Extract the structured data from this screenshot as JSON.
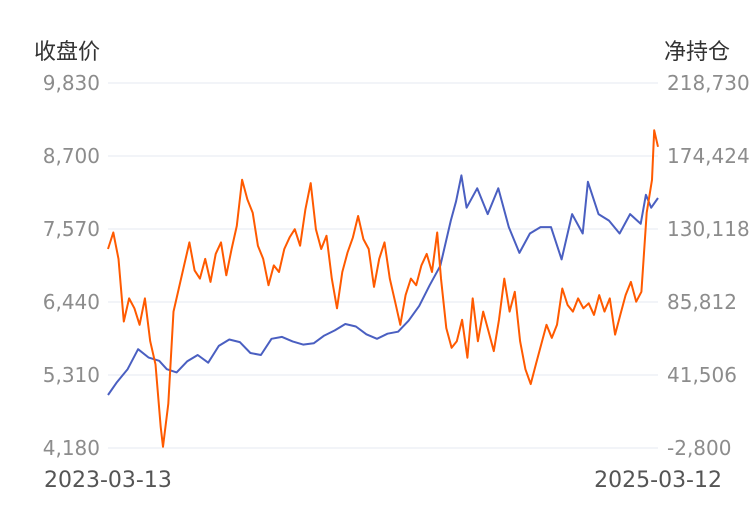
{
  "chart_data": {
    "type": "line",
    "left_axis_title": "收盘价",
    "right_axis_title": "净持仓",
    "left_ticks": [
      "9,830",
      "8,700",
      "7,570",
      "6,440",
      "5,310",
      "4,180"
    ],
    "right_ticks": [
      "218,730",
      "174,424",
      "130,118",
      "85,812",
      "41,506",
      "-2,800"
    ],
    "left_ylim": [
      4180,
      9830
    ],
    "right_ylim": [
      -2800,
      218730
    ],
    "x_start_label": "2023-03-13",
    "x_end_label": "2025-03-12",
    "x_range": [
      "2023-03-13",
      "2025-03-12"
    ],
    "grid": true,
    "series": [
      {
        "axis": "left",
        "color": "#4a5fc1",
        "points": [
          [
            "2023-03-13",
            5000
          ],
          [
            "2023-03-25",
            5200
          ],
          [
            "2023-04-08",
            5400
          ],
          [
            "2023-04-22",
            5710
          ],
          [
            "2023-05-06",
            5580
          ],
          [
            "2023-05-20",
            5530
          ],
          [
            "2023-05-30",
            5400
          ],
          [
            "2023-06-12",
            5350
          ],
          [
            "2023-06-26",
            5520
          ],
          [
            "2023-07-10",
            5620
          ],
          [
            "2023-07-24",
            5500
          ],
          [
            "2023-08-07",
            5760
          ],
          [
            "2023-08-21",
            5860
          ],
          [
            "2023-09-04",
            5820
          ],
          [
            "2023-09-18",
            5650
          ],
          [
            "2023-10-02",
            5620
          ],
          [
            "2023-10-16",
            5870
          ],
          [
            "2023-10-30",
            5900
          ],
          [
            "2023-11-13",
            5830
          ],
          [
            "2023-11-27",
            5780
          ],
          [
            "2023-12-11",
            5800
          ],
          [
            "2023-12-25",
            5920
          ],
          [
            "2024-01-08",
            6000
          ],
          [
            "2024-01-22",
            6100
          ],
          [
            "2024-02-05",
            6060
          ],
          [
            "2024-02-19",
            5940
          ],
          [
            "2024-03-04",
            5870
          ],
          [
            "2024-03-18",
            5950
          ],
          [
            "2024-04-01",
            5980
          ],
          [
            "2024-04-15",
            6150
          ],
          [
            "2024-04-29",
            6380
          ],
          [
            "2024-05-13",
            6700
          ],
          [
            "2024-05-27",
            7000
          ],
          [
            "2024-06-10",
            7700
          ],
          [
            "2024-06-17",
            8000
          ],
          [
            "2024-06-24",
            8400
          ],
          [
            "2024-07-01",
            7900
          ],
          [
            "2024-07-15",
            8200
          ],
          [
            "2024-07-29",
            7800
          ],
          [
            "2024-08-12",
            8200
          ],
          [
            "2024-08-26",
            7600
          ],
          [
            "2024-09-09",
            7200
          ],
          [
            "2024-09-23",
            7500
          ],
          [
            "2024-10-07",
            7600
          ],
          [
            "2024-10-21",
            7600
          ],
          [
            "2024-11-04",
            7100
          ],
          [
            "2024-11-18",
            7800
          ],
          [
            "2024-12-02",
            7500
          ],
          [
            "2024-12-09",
            8300
          ],
          [
            "2024-12-23",
            7800
          ],
          [
            "2025-01-06",
            7700
          ],
          [
            "2025-01-20",
            7500
          ],
          [
            "2025-02-03",
            7800
          ],
          [
            "2025-02-17",
            7650
          ],
          [
            "2025-02-24",
            8100
          ],
          [
            "2025-03-03",
            7900
          ],
          [
            "2025-03-12",
            8050
          ]
        ]
      },
      {
        "axis": "right",
        "color": "#ff5a00",
        "points": [
          [
            "2023-03-13",
            118000
          ],
          [
            "2023-03-20",
            128000
          ],
          [
            "2023-03-27",
            112000
          ],
          [
            "2023-04-03",
            74000
          ],
          [
            "2023-04-10",
            88000
          ],
          [
            "2023-04-17",
            82000
          ],
          [
            "2023-04-24",
            72000
          ],
          [
            "2023-05-01",
            88000
          ],
          [
            "2023-05-08",
            62000
          ],
          [
            "2023-05-15",
            48000
          ],
          [
            "2023-05-22",
            10000
          ],
          [
            "2023-05-25",
            -2000
          ],
          [
            "2023-06-01",
            24000
          ],
          [
            "2023-06-08",
            80000
          ],
          [
            "2023-06-15",
            94000
          ],
          [
            "2023-06-22",
            108000
          ],
          [
            "2023-06-29",
            122000
          ],
          [
            "2023-07-06",
            105000
          ],
          [
            "2023-07-13",
            100000
          ],
          [
            "2023-07-20",
            112000
          ],
          [
            "2023-07-27",
            98000
          ],
          [
            "2023-08-03",
            115000
          ],
          [
            "2023-08-10",
            122000
          ],
          [
            "2023-08-17",
            102000
          ],
          [
            "2023-08-24",
            118000
          ],
          [
            "2023-08-31",
            132000
          ],
          [
            "2023-09-07",
            160000
          ],
          [
            "2023-09-14",
            148000
          ],
          [
            "2023-09-21",
            140000
          ],
          [
            "2023-09-28",
            120000
          ],
          [
            "2023-10-05",
            112000
          ],
          [
            "2023-10-12",
            96000
          ],
          [
            "2023-10-19",
            108000
          ],
          [
            "2023-10-26",
            104000
          ],
          [
            "2023-11-02",
            118000
          ],
          [
            "2023-11-09",
            125000
          ],
          [
            "2023-11-16",
            130000
          ],
          [
            "2023-11-23",
            120000
          ],
          [
            "2023-11-30",
            142000
          ],
          [
            "2023-12-07",
            158000
          ],
          [
            "2023-12-14",
            130000
          ],
          [
            "2023-12-21",
            118000
          ],
          [
            "2023-12-28",
            126000
          ],
          [
            "2024-01-04",
            100000
          ],
          [
            "2024-01-11",
            82000
          ],
          [
            "2024-01-18",
            104000
          ],
          [
            "2024-01-25",
            116000
          ],
          [
            "2024-02-01",
            125000
          ],
          [
            "2024-02-08",
            138000
          ],
          [
            "2024-02-15",
            124000
          ],
          [
            "2024-02-22",
            118000
          ],
          [
            "2024-02-29",
            95000
          ],
          [
            "2024-03-07",
            112000
          ],
          [
            "2024-03-14",
            122000
          ],
          [
            "2024-03-21",
            100000
          ],
          [
            "2024-03-28",
            86000
          ],
          [
            "2024-04-04",
            72000
          ],
          [
            "2024-04-11",
            90000
          ],
          [
            "2024-04-18",
            100000
          ],
          [
            "2024-04-25",
            96000
          ],
          [
            "2024-05-02",
            108000
          ],
          [
            "2024-05-09",
            115000
          ],
          [
            "2024-05-16",
            104000
          ],
          [
            "2024-05-23",
            128000
          ],
          [
            "2024-05-28",
            100000
          ],
          [
            "2024-06-04",
            70000
          ],
          [
            "2024-06-11",
            58000
          ],
          [
            "2024-06-18",
            62000
          ],
          [
            "2024-06-25",
            75000
          ],
          [
            "2024-07-02",
            52000
          ],
          [
            "2024-07-09",
            88000
          ],
          [
            "2024-07-16",
            62000
          ],
          [
            "2024-07-23",
            80000
          ],
          [
            "2024-07-30",
            68000
          ],
          [
            "2024-08-06",
            56000
          ],
          [
            "2024-08-13",
            75000
          ],
          [
            "2024-08-20",
            100000
          ],
          [
            "2024-08-27",
            80000
          ],
          [
            "2024-09-03",
            92000
          ],
          [
            "2024-09-10",
            62000
          ],
          [
            "2024-09-17",
            45000
          ],
          [
            "2024-09-24",
            36000
          ],
          [
            "2024-10-01",
            48000
          ],
          [
            "2024-10-08",
            60000
          ],
          [
            "2024-10-15",
            72000
          ],
          [
            "2024-10-22",
            64000
          ],
          [
            "2024-10-29",
            72000
          ],
          [
            "2024-11-05",
            94000
          ],
          [
            "2024-11-12",
            84000
          ],
          [
            "2024-11-19",
            80000
          ],
          [
            "2024-11-26",
            88000
          ],
          [
            "2024-12-03",
            82000
          ],
          [
            "2024-12-10",
            85000
          ],
          [
            "2024-12-17",
            78000
          ],
          [
            "2024-12-24",
            90000
          ],
          [
            "2024-12-31",
            80000
          ],
          [
            "2025-01-07",
            88000
          ],
          [
            "2025-01-14",
            66000
          ],
          [
            "2025-01-21",
            78000
          ],
          [
            "2025-01-28",
            90000
          ],
          [
            "2025-02-04",
            98000
          ],
          [
            "2025-02-11",
            86000
          ],
          [
            "2025-02-18",
            92000
          ],
          [
            "2025-02-25",
            140000
          ],
          [
            "2025-03-04",
            160000
          ],
          [
            "2025-03-07",
            190000
          ],
          [
            "2025-03-12",
            180000
          ]
        ]
      }
    ]
  }
}
